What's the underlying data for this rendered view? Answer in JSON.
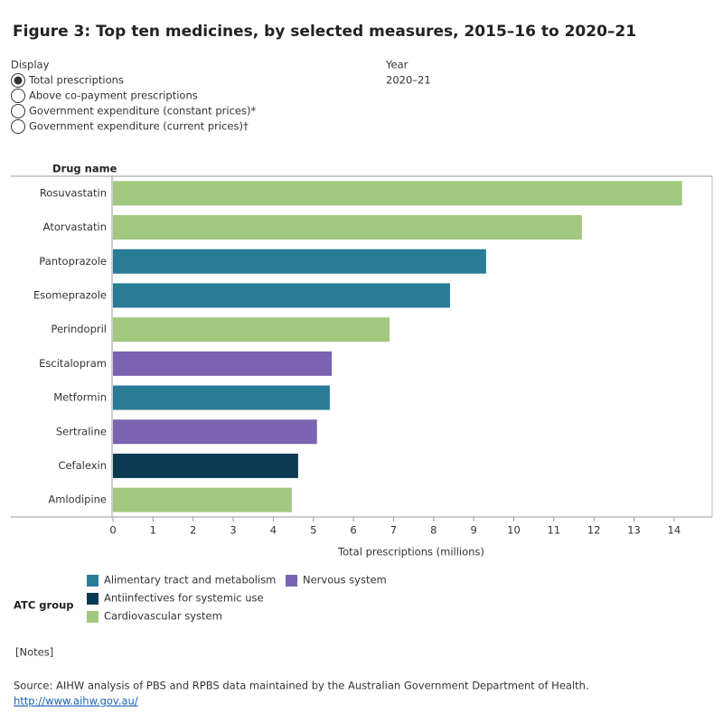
{
  "chart_data": {
    "type": "bar",
    "orientation": "horizontal",
    "title": "Figure 3: Top ten medicines, by selected measures, 2015–16 to 2020–21",
    "y_label": "Drug name",
    "x_label": "Total prescriptions (millions)",
    "legend_title": "ATC group",
    "categories": [
      "Rosuvastatin",
      "Atorvastatin",
      "Pantoprazole",
      "Esomeprazole",
      "Perindopril",
      "Escitalopram",
      "Metformin",
      "Sertraline",
      "Cefalexin",
      "Amlodipine"
    ],
    "series": [
      {
        "name": "Alimentary tract and metabolism",
        "color": "#2a7b96",
        "values": [
          null,
          null,
          9.31,
          8.41,
          null,
          null,
          5.41,
          null,
          null,
          null
        ]
      },
      {
        "name": "Antiinfectives for systemic use",
        "color": "#0b3a52",
        "values": [
          null,
          null,
          null,
          null,
          null,
          null,
          null,
          null,
          4.62,
          null
        ]
      },
      {
        "name": "Cardiovascular system",
        "color": "#a2c77e",
        "values": [
          14.2,
          11.7,
          null,
          null,
          6.9,
          null,
          null,
          null,
          null,
          4.46
        ]
      },
      {
        "name": "Nervous system",
        "color": "#7a63b0",
        "values": [
          null,
          null,
          null,
          null,
          null,
          5.46,
          null,
          5.09,
          null,
          null
        ]
      }
    ],
    "xlim": [
      0,
      14.95
    ],
    "xticks": [
      0,
      1,
      2,
      3,
      4,
      5,
      6,
      7,
      8,
      9,
      10,
      11,
      12,
      13,
      14
    ],
    "grid": false
  },
  "controls": {
    "display_label": "Display",
    "options": [
      "Total prescriptions",
      "Above co-payment prescriptions",
      "Government expenditure (constant prices)*",
      "Government expenditure (current prices)†"
    ],
    "selected": 0,
    "year_label": "Year",
    "year": "2020–21"
  },
  "footer": {
    "notes": "[Notes]",
    "source": "Source: AIHW analysis of PBS and RPBS data maintained by the Australian Government Department of Health.",
    "link": "http://www.aihw.gov.au/"
  }
}
